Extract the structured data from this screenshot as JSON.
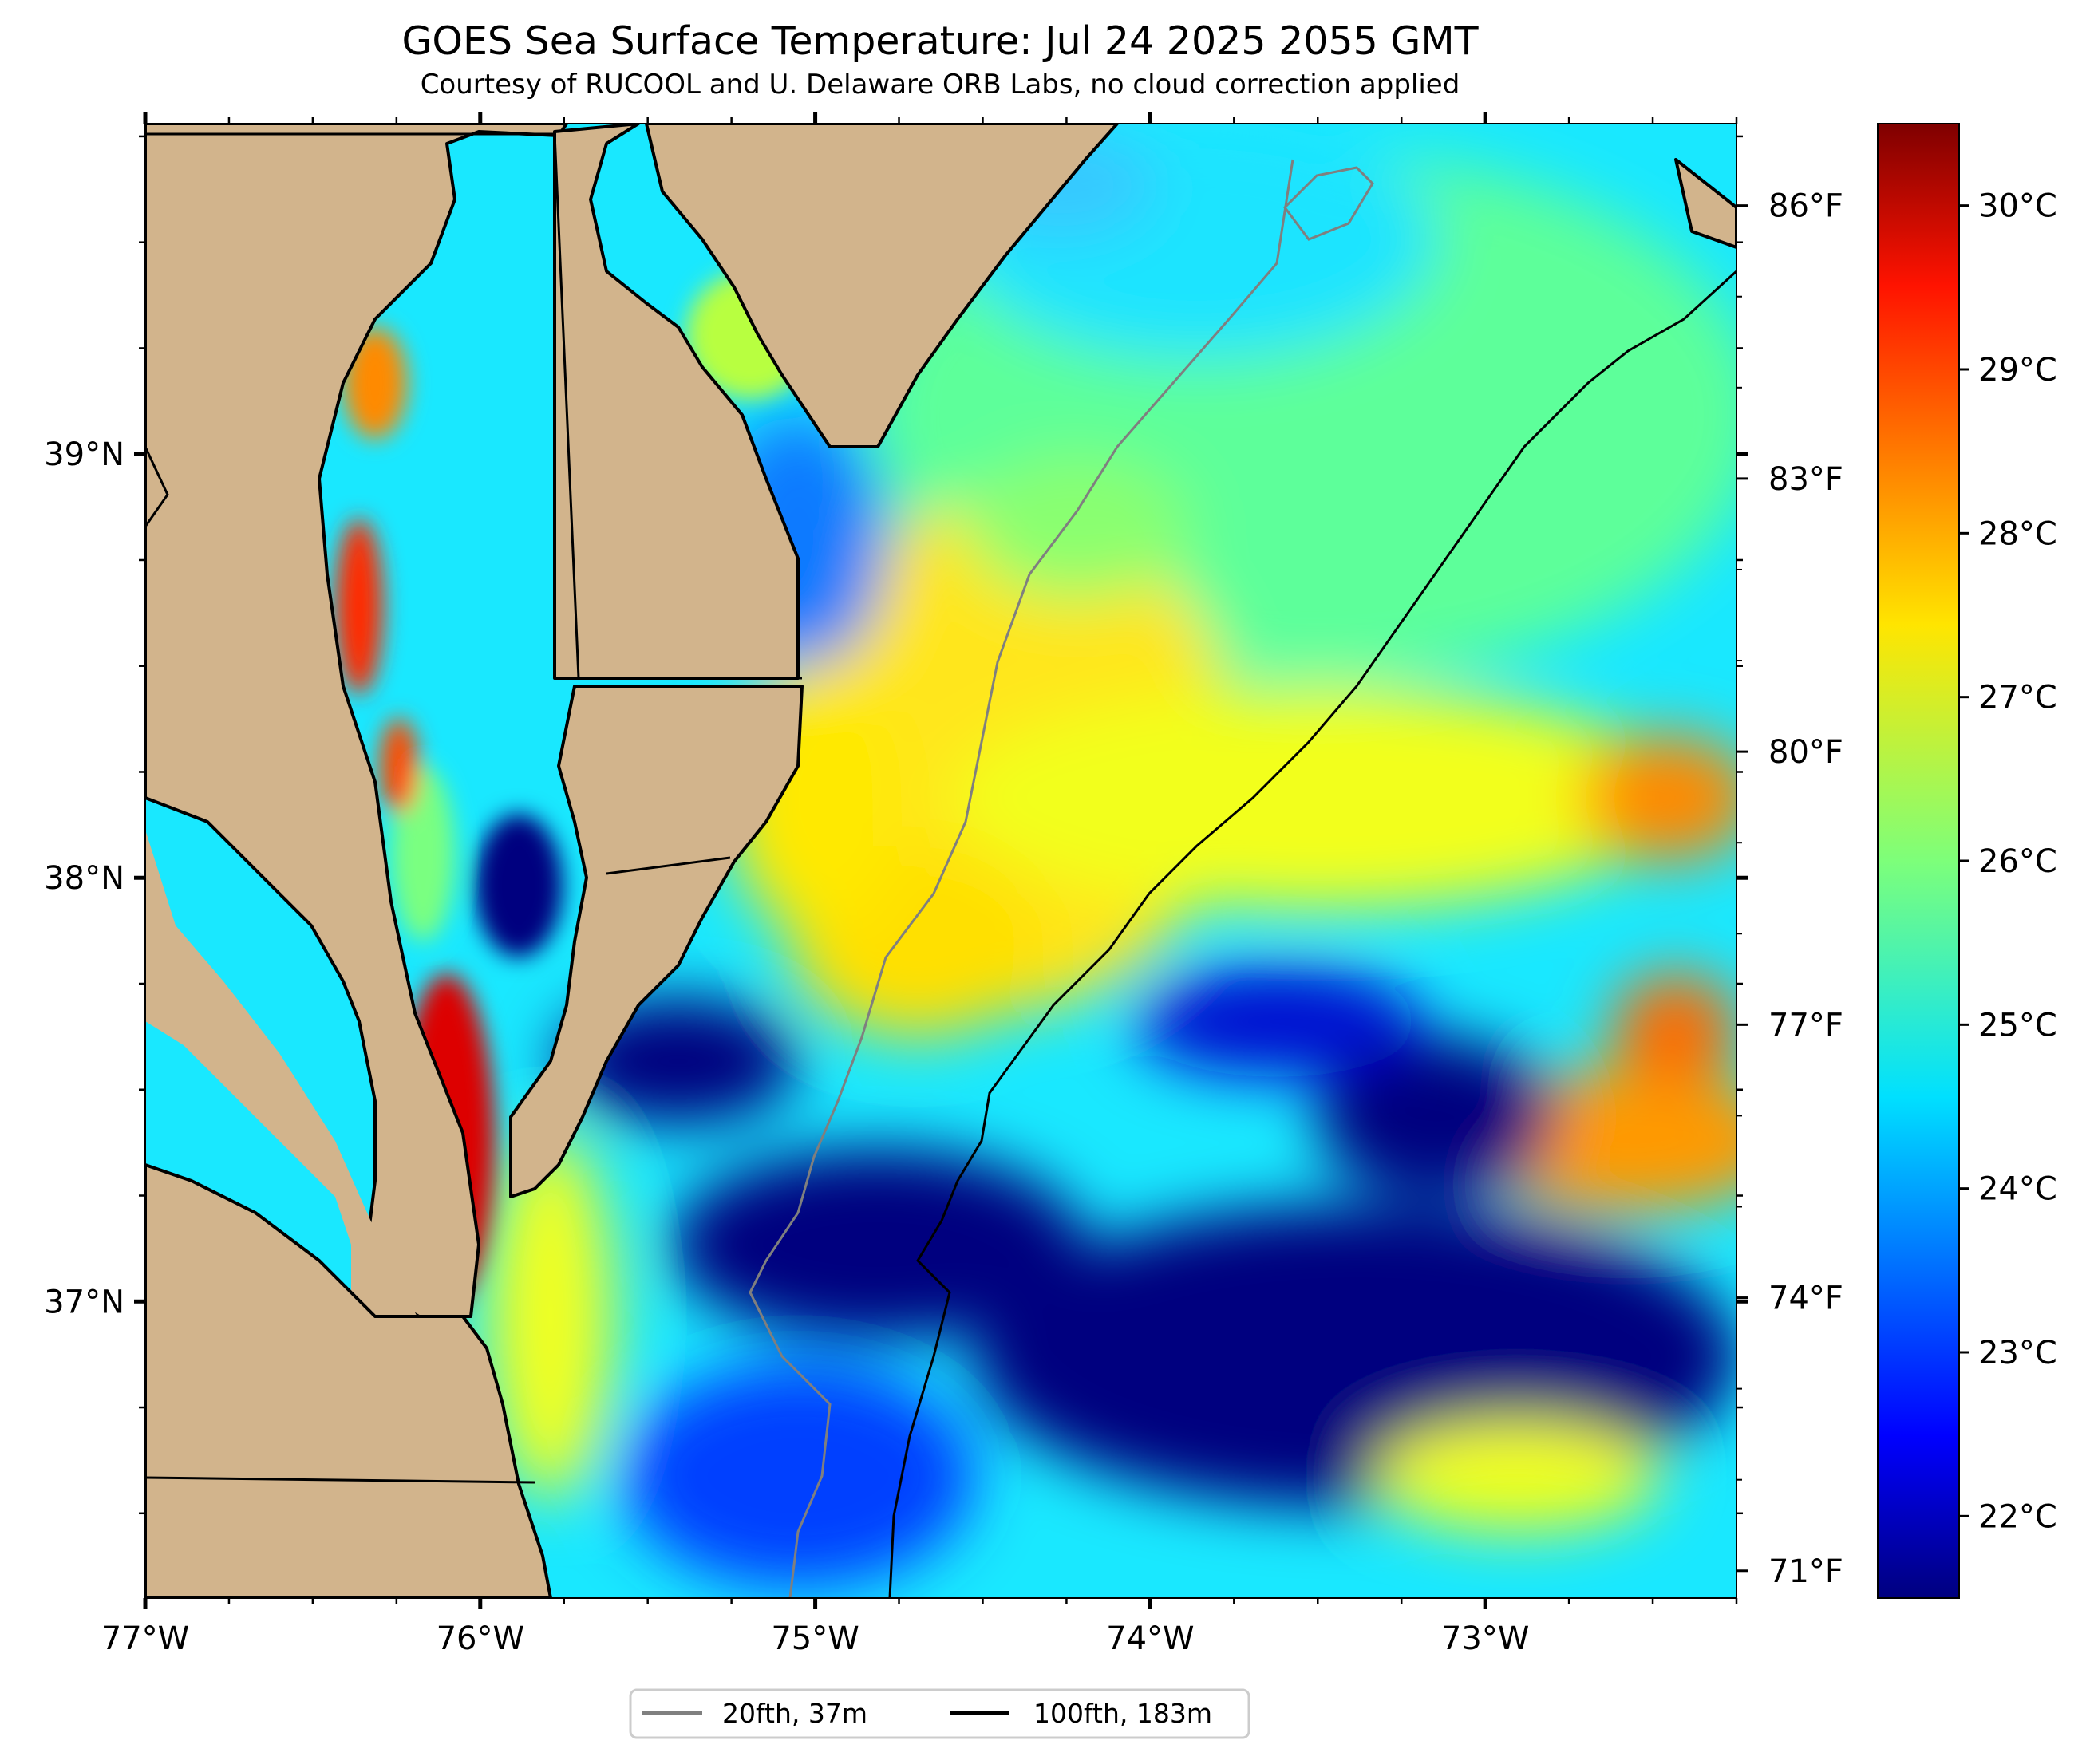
{
  "title": "GOES Sea Surface Temperature: Jul 24 2025 2055 GMT",
  "subtitle": "Courtesy of RUCOOL and U. Delaware ORB Labs, no cloud correction applied",
  "map": {
    "lon_range": [
      -77.0,
      -72.25
    ],
    "lat_range": [
      36.3,
      39.78
    ],
    "lon_ticks": [
      {
        "value": -77,
        "label": "77°W"
      },
      {
        "value": -76,
        "label": "76°W"
      },
      {
        "value": -75,
        "label": "75°W"
      },
      {
        "value": -74,
        "label": "74°W"
      },
      {
        "value": -73,
        "label": "73°W"
      }
    ],
    "lat_ticks": [
      {
        "value": 39,
        "label": "39°N"
      },
      {
        "value": 38,
        "label": "38°N"
      },
      {
        "value": 37,
        "label": "37°N"
      }
    ],
    "land_color": "#d2b48c",
    "coastline_color": "#000000"
  },
  "colorbar": {
    "celsius_range": [
      21.5,
      30.5
    ],
    "celsius_ticks": [
      {
        "value": 22,
        "label": "22°C"
      },
      {
        "value": 23,
        "label": "23°C"
      },
      {
        "value": 24,
        "label": "24°C"
      },
      {
        "value": 25,
        "label": "25°C"
      },
      {
        "value": 26,
        "label": "26°C"
      },
      {
        "value": 27,
        "label": "27°C"
      },
      {
        "value": 28,
        "label": "28°C"
      },
      {
        "value": 29,
        "label": "29°C"
      },
      {
        "value": 30,
        "label": "30°C"
      }
    ],
    "fahrenheit_ticks": [
      {
        "value": 71,
        "label": "71°F"
      },
      {
        "value": 74,
        "label": "74°F"
      },
      {
        "value": 77,
        "label": "77°F"
      },
      {
        "value": 80,
        "label": "80°F"
      },
      {
        "value": 83,
        "label": "83°F"
      },
      {
        "value": 86,
        "label": "86°F"
      }
    ],
    "colormap": "jet"
  },
  "legend": {
    "placement": "bottom-center",
    "items": [
      {
        "label": "20fth, 37m",
        "color": "#808080"
      },
      {
        "label": "100fth, 183m",
        "color": "#000000"
      }
    ]
  }
}
